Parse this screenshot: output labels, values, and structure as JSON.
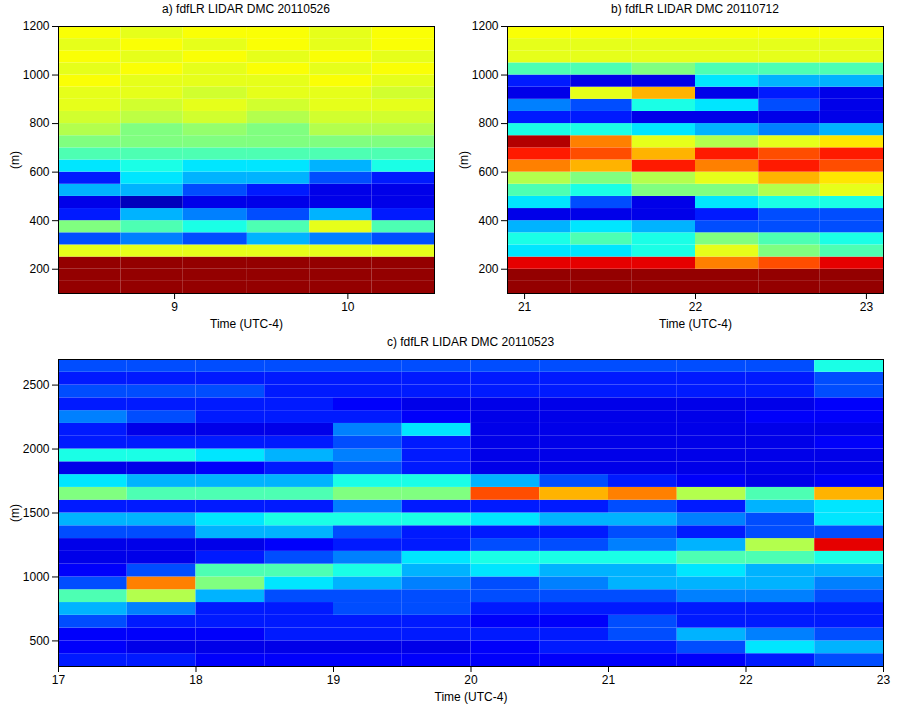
{
  "chart_data": [
    {
      "type": "heatmap",
      "title": "a) fdfLR LIDAR DMC 20110526",
      "xlabel": "Time (UTC-4)",
      "ylabel": "(m)",
      "xlim": [
        8.33,
        10.5
      ],
      "xticks": [
        9,
        10
      ],
      "ylim": [
        100,
        1200
      ],
      "yticks": [
        200,
        400,
        600,
        800,
        1000,
        1200
      ],
      "z_range": [
        0,
        1
      ],
      "x_edges": [
        8.33,
        8.69,
        9.05,
        9.42,
        9.78,
        10.14,
        10.5
      ],
      "y_edges": [
        100,
        150,
        200,
        250,
        300,
        350,
        400,
        450,
        500,
        550,
        600,
        650,
        700,
        750,
        800,
        850,
        900,
        950,
        1000,
        1050,
        1100,
        1150,
        1200
      ],
      "cells": [
        [
          0.98,
          0.98,
          0.98,
          0.98,
          0.98,
          0.98
        ],
        [
          0.98,
          0.98,
          0.98,
          0.98,
          0.98,
          0.98
        ],
        [
          0.98,
          0.98,
          0.98,
          0.98,
          0.98,
          0.98
        ],
        [
          0.6,
          0.6,
          0.6,
          0.6,
          0.6,
          0.6
        ],
        [
          0.2,
          0.25,
          0.2,
          0.3,
          0.25,
          0.2
        ],
        [
          0.5,
          0.45,
          0.4,
          0.45,
          0.6,
          0.45
        ],
        [
          0.15,
          0.3,
          0.25,
          0.2,
          0.3,
          0.15
        ],
        [
          0.1,
          0.05,
          0.1,
          0.1,
          0.1,
          0.1
        ],
        [
          0.3,
          0.3,
          0.2,
          0.15,
          0.1,
          0.1
        ],
        [
          0.15,
          0.35,
          0.3,
          0.3,
          0.2,
          0.15
        ],
        [
          0.35,
          0.4,
          0.35,
          0.35,
          0.3,
          0.4
        ],
        [
          0.45,
          0.45,
          0.45,
          0.45,
          0.45,
          0.45
        ],
        [
          0.5,
          0.5,
          0.5,
          0.5,
          0.5,
          0.5
        ],
        [
          0.55,
          0.5,
          0.52,
          0.5,
          0.55,
          0.55
        ],
        [
          0.58,
          0.56,
          0.58,
          0.55,
          0.58,
          0.58
        ],
        [
          0.6,
          0.58,
          0.6,
          0.58,
          0.6,
          0.6
        ],
        [
          0.6,
          0.6,
          0.58,
          0.6,
          0.6,
          0.58
        ],
        [
          0.62,
          0.6,
          0.6,
          0.6,
          0.62,
          0.6
        ],
        [
          0.6,
          0.62,
          0.6,
          0.62,
          0.6,
          0.62
        ],
        [
          0.62,
          0.6,
          0.62,
          0.6,
          0.62,
          0.6
        ],
        [
          0.6,
          0.62,
          0.6,
          0.62,
          0.6,
          0.62
        ],
        [
          0.62,
          0.6,
          0.62,
          0.62,
          0.6,
          0.62
        ]
      ]
    },
    {
      "type": "heatmap",
      "title": "b) fdfLR LIDAR DMC 20110712",
      "xlabel": "Time (UTC-4)",
      "ylabel": "(m)",
      "xlim": [
        20.9,
        23.1
      ],
      "xticks": [
        21,
        22,
        23
      ],
      "ylim": [
        100,
        1200
      ],
      "yticks": [
        200,
        400,
        600,
        800,
        1000,
        1200
      ],
      "z_range": [
        0,
        1
      ],
      "x_edges": [
        20.9,
        21.27,
        21.63,
        22.0,
        22.37,
        22.73,
        23.1
      ],
      "y_edges": [
        100,
        150,
        200,
        250,
        300,
        350,
        400,
        450,
        500,
        550,
        600,
        650,
        700,
        750,
        800,
        850,
        900,
        950,
        1000,
        1050,
        1100,
        1150,
        1200
      ],
      "cells": [
        [
          0.98,
          0.98,
          0.98,
          0.98,
          0.98,
          0.98
        ],
        [
          0.98,
          0.98,
          0.98,
          0.98,
          0.98,
          0.98
        ],
        [
          0.9,
          0.9,
          0.9,
          0.75,
          0.8,
          0.9
        ],
        [
          0.35,
          0.35,
          0.4,
          0.6,
          0.5,
          0.45
        ],
        [
          0.4,
          0.45,
          0.4,
          0.5,
          0.45,
          0.4
        ],
        [
          0.3,
          0.35,
          0.3,
          0.2,
          0.2,
          0.2
        ],
        [
          0.1,
          0.1,
          0.1,
          0.15,
          0.2,
          0.2
        ],
        [
          0.35,
          0.2,
          0.1,
          0.35,
          0.4,
          0.4
        ],
        [
          0.45,
          0.4,
          0.5,
          0.5,
          0.55,
          0.6
        ],
        [
          0.55,
          0.5,
          0.55,
          0.6,
          0.7,
          0.65
        ],
        [
          0.75,
          0.7,
          0.85,
          0.75,
          0.85,
          0.8
        ],
        [
          0.85,
          0.8,
          0.7,
          0.85,
          0.8,
          0.85
        ],
        [
          0.95,
          0.75,
          0.6,
          0.55,
          0.6,
          0.65
        ],
        [
          0.4,
          0.4,
          0.35,
          0.3,
          0.25,
          0.3
        ],
        [
          0.15,
          0.15,
          0.1,
          0.1,
          0.1,
          0.1
        ],
        [
          0.25,
          0.2,
          0.4,
          0.35,
          0.2,
          0.1
        ],
        [
          0.1,
          0.6,
          0.7,
          0.1,
          0.15,
          0.1
        ],
        [
          0.15,
          0.1,
          0.1,
          0.35,
          0.3,
          0.3
        ],
        [
          0.45,
          0.45,
          0.5,
          0.45,
          0.45,
          0.45
        ],
        [
          0.6,
          0.6,
          0.6,
          0.6,
          0.6,
          0.6
        ],
        [
          0.6,
          0.6,
          0.6,
          0.6,
          0.6,
          0.6
        ],
        [
          0.62,
          0.62,
          0.62,
          0.62,
          0.62,
          0.62
        ]
      ]
    },
    {
      "type": "heatmap",
      "title": "c) fdfLR LIDAR DMC 20110523",
      "xlabel": "Time (UTC-4)",
      "ylabel": "(m)",
      "xlim": [
        17,
        23
      ],
      "xticks": [
        17,
        18,
        19,
        20,
        21,
        22,
        23
      ],
      "ylim": [
        300,
        2700
      ],
      "yticks": [
        500,
        1000,
        1500,
        2000,
        2500
      ],
      "z_range": [
        0,
        1
      ],
      "x_edges": [
        17,
        17.5,
        18,
        18.5,
        19,
        19.5,
        20,
        20.5,
        21,
        21.5,
        22,
        22.5,
        23
      ],
      "y_edges": [
        300,
        400,
        500,
        600,
        700,
        800,
        900,
        1000,
        1100,
        1200,
        1300,
        1400,
        1500,
        1600,
        1700,
        1800,
        1900,
        2000,
        2100,
        2200,
        2300,
        2400,
        2500,
        2600,
        2700
      ],
      "cells": [
        [
          0.15,
          0.15,
          0.12,
          0.12,
          0.12,
          0.12,
          0.12,
          0.12,
          0.12,
          0.12,
          0.15,
          0.2
        ],
        [
          0.12,
          0.1,
          0.1,
          0.1,
          0.1,
          0.1,
          0.12,
          0.15,
          0.15,
          0.2,
          0.35,
          0.3
        ],
        [
          0.12,
          0.12,
          0.12,
          0.15,
          0.15,
          0.15,
          0.15,
          0.15,
          0.2,
          0.3,
          0.25,
          0.2
        ],
        [
          0.2,
          0.15,
          0.15,
          0.15,
          0.15,
          0.15,
          0.12,
          0.12,
          0.2,
          0.15,
          0.15,
          0.15
        ],
        [
          0.3,
          0.25,
          0.15,
          0.15,
          0.2,
          0.2,
          0.15,
          0.15,
          0.15,
          0.15,
          0.15,
          0.15
        ],
        [
          0.45,
          0.55,
          0.3,
          0.2,
          0.2,
          0.2,
          0.2,
          0.2,
          0.2,
          0.25,
          0.25,
          0.2
        ],
        [
          0.2,
          0.75,
          0.5,
          0.35,
          0.3,
          0.25,
          0.2,
          0.25,
          0.3,
          0.3,
          0.3,
          0.25
        ],
        [
          0.12,
          0.2,
          0.45,
          0.45,
          0.4,
          0.3,
          0.35,
          0.3,
          0.3,
          0.35,
          0.3,
          0.3
        ],
        [
          0.1,
          0.1,
          0.15,
          0.2,
          0.25,
          0.35,
          0.4,
          0.4,
          0.4,
          0.45,
          0.45,
          0.4
        ],
        [
          0.1,
          0.1,
          0.1,
          0.12,
          0.15,
          0.15,
          0.2,
          0.2,
          0.25,
          0.3,
          0.55,
          0.9
        ],
        [
          0.2,
          0.2,
          0.3,
          0.3,
          0.2,
          0.15,
          0.15,
          0.15,
          0.2,
          0.15,
          0.2,
          0.2
        ],
        [
          0.3,
          0.3,
          0.35,
          0.4,
          0.4,
          0.4,
          0.35,
          0.3,
          0.3,
          0.25,
          0.2,
          0.35
        ],
        [
          0.15,
          0.15,
          0.15,
          0.15,
          0.25,
          0.15,
          0.15,
          0.15,
          0.2,
          0.15,
          0.3,
          0.35
        ],
        [
          0.5,
          0.45,
          0.45,
          0.45,
          0.5,
          0.5,
          0.8,
          0.7,
          0.75,
          0.55,
          0.45,
          0.7
        ],
        [
          0.35,
          0.3,
          0.3,
          0.3,
          0.4,
          0.4,
          0.3,
          0.2,
          0.15,
          0.12,
          0.1,
          0.12
        ],
        [
          0.1,
          0.1,
          0.12,
          0.15,
          0.2,
          0.15,
          0.1,
          0.1,
          0.1,
          0.1,
          0.1,
          0.1
        ],
        [
          0.4,
          0.4,
          0.35,
          0.3,
          0.25,
          0.15,
          0.1,
          0.1,
          0.1,
          0.1,
          0.1,
          0.1
        ],
        [
          0.15,
          0.15,
          0.15,
          0.15,
          0.2,
          0.15,
          0.1,
          0.1,
          0.1,
          0.1,
          0.1,
          0.12
        ],
        [
          0.15,
          0.1,
          0.1,
          0.1,
          0.25,
          0.35,
          0.1,
          0.1,
          0.1,
          0.1,
          0.1,
          0.1
        ],
        [
          0.25,
          0.2,
          0.15,
          0.15,
          0.15,
          0.12,
          0.1,
          0.1,
          0.1,
          0.1,
          0.12,
          0.12
        ],
        [
          0.15,
          0.15,
          0.15,
          0.15,
          0.12,
          0.1,
          0.1,
          0.1,
          0.1,
          0.1,
          0.1,
          0.12
        ],
        [
          0.2,
          0.2,
          0.2,
          0.15,
          0.15,
          0.15,
          0.15,
          0.15,
          0.15,
          0.15,
          0.15,
          0.2
        ],
        [
          0.15,
          0.15,
          0.15,
          0.15,
          0.15,
          0.15,
          0.15,
          0.15,
          0.15,
          0.15,
          0.15,
          0.2
        ],
        [
          0.2,
          0.2,
          0.2,
          0.2,
          0.2,
          0.2,
          0.2,
          0.2,
          0.2,
          0.2,
          0.2,
          0.4
        ]
      ]
    }
  ]
}
